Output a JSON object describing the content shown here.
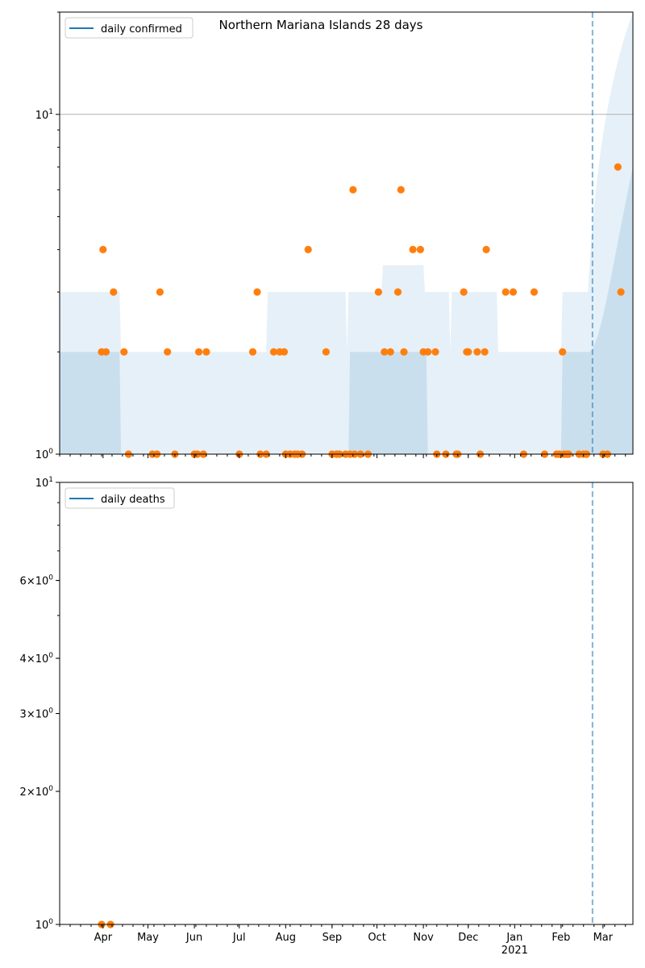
{
  "colors": {
    "line": "#1f77b4",
    "points": "#ff7f0e",
    "band_light": "#d6e6f3",
    "band_dark": "#a9c9e3",
    "axis": "#000000",
    "grid": "#b0b0b0"
  },
  "chart_data": [
    {
      "type": "scatter",
      "title": "Northern Mariana Islands 28 days",
      "legend": "daily confirmed",
      "legend_position": "top-left",
      "yscale": "log",
      "ylim": [
        1,
        20
      ],
      "y_tick_labels": [
        "10^0",
        "10^1"
      ],
      "y_gridline": 10,
      "xlim": [
        "2020-03-03",
        "2021-03-21"
      ],
      "x_tick_labels": [
        "Apr",
        "May",
        "Jun",
        "Jul",
        "Aug",
        "Sep",
        "Oct",
        "Nov",
        "Dec",
        "Jan",
        "Feb",
        "Mar"
      ],
      "x_year_label": "2021",
      "vline_date": "2021-02-22",
      "points": [
        [
          "2020-03-31",
          2
        ],
        [
          "2020-04-01",
          4
        ],
        [
          "2020-04-03",
          2
        ],
        [
          "2020-04-08",
          3
        ],
        [
          "2020-04-15",
          2
        ],
        [
          "2020-04-18",
          1
        ],
        [
          "2020-05-04",
          1
        ],
        [
          "2020-05-07",
          1
        ],
        [
          "2020-05-09",
          3
        ],
        [
          "2020-05-14",
          2
        ],
        [
          "2020-05-19",
          1
        ],
        [
          "2020-06-01",
          1
        ],
        [
          "2020-06-03",
          1
        ],
        [
          "2020-06-04",
          2
        ],
        [
          "2020-06-07",
          1
        ],
        [
          "2020-06-09",
          2
        ],
        [
          "2020-07-01",
          1
        ],
        [
          "2020-07-10",
          2
        ],
        [
          "2020-07-13",
          3
        ],
        [
          "2020-07-15",
          1
        ],
        [
          "2020-07-19",
          1
        ],
        [
          "2020-07-24",
          2
        ],
        [
          "2020-07-28",
          2
        ],
        [
          "2020-07-31",
          2
        ],
        [
          "2020-08-01",
          1
        ],
        [
          "2020-08-04",
          1
        ],
        [
          "2020-08-07",
          1
        ],
        [
          "2020-08-09",
          1
        ],
        [
          "2020-08-12",
          1
        ],
        [
          "2020-08-16",
          4
        ],
        [
          "2020-08-28",
          2
        ],
        [
          "2020-09-01",
          1
        ],
        [
          "2020-09-04",
          1
        ],
        [
          "2020-09-06",
          1
        ],
        [
          "2020-09-10",
          1
        ],
        [
          "2020-09-13",
          1
        ],
        [
          "2020-09-15",
          6
        ],
        [
          "2020-09-16",
          1
        ],
        [
          "2020-09-20",
          1
        ],
        [
          "2020-09-25",
          1
        ],
        [
          "2020-10-02",
          3
        ],
        [
          "2020-10-06",
          2
        ],
        [
          "2020-10-10",
          2
        ],
        [
          "2020-10-15",
          3
        ],
        [
          "2020-10-17",
          6
        ],
        [
          "2020-10-19",
          2
        ],
        [
          "2020-10-25",
          4
        ],
        [
          "2020-10-30",
          4
        ],
        [
          "2020-11-01",
          2
        ],
        [
          "2020-11-04",
          2
        ],
        [
          "2020-11-09",
          2
        ],
        [
          "2020-11-10",
          1
        ],
        [
          "2020-11-16",
          1
        ],
        [
          "2020-11-23",
          1
        ],
        [
          "2020-11-24",
          1
        ],
        [
          "2020-11-28",
          3
        ],
        [
          "2020-11-30",
          2
        ],
        [
          "2020-12-01",
          2
        ],
        [
          "2020-12-07",
          2
        ],
        [
          "2020-12-09",
          1
        ],
        [
          "2020-12-12",
          2
        ],
        [
          "2020-12-13",
          4
        ],
        [
          "2020-12-26",
          3
        ],
        [
          "2020-12-31",
          3
        ],
        [
          "2021-01-07",
          1
        ],
        [
          "2021-01-14",
          3
        ],
        [
          "2021-01-21",
          1
        ],
        [
          "2021-01-29",
          1
        ],
        [
          "2021-01-31",
          1
        ],
        [
          "2021-02-02",
          2
        ],
        [
          "2021-02-03",
          1
        ],
        [
          "2021-02-05",
          1
        ],
        [
          "2021-02-06",
          1
        ],
        [
          "2021-02-13",
          1
        ],
        [
          "2021-02-16",
          1
        ],
        [
          "2021-02-18",
          1
        ],
        [
          "2021-03-01",
          1
        ],
        [
          "2021-03-04",
          1
        ],
        [
          "2021-03-11",
          7
        ],
        [
          "2021-03-13",
          3
        ]
      ]
    },
    {
      "type": "scatter",
      "legend": "daily deaths",
      "legend_position": "top-left",
      "yscale": "log",
      "ylim": [
        1,
        10
      ],
      "y_tick_labels": [
        "10^0",
        "2×10^0",
        "3×10^0",
        "4×10^0",
        "6×10^0",
        "10^1"
      ],
      "xlim": [
        "2020-03-03",
        "2021-03-21"
      ],
      "x_tick_labels": [
        "Apr",
        "May",
        "Jun",
        "Jul",
        "Aug",
        "Sep",
        "Oct",
        "Nov",
        "Dec",
        "Jan",
        "Feb",
        "Mar"
      ],
      "x_year_label": "2021",
      "vline_date": "2021-02-22",
      "points": [
        [
          "2020-03-31",
          1
        ],
        [
          "2020-04-06",
          1
        ]
      ]
    }
  ]
}
